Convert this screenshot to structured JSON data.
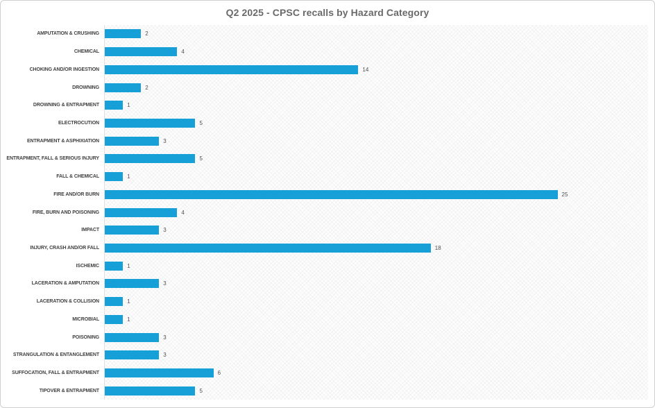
{
  "title": "Q2 2025 - CPSC recalls by Hazard Category",
  "colors": {
    "bar": "#17A0D8",
    "title_text": "#6A6A6A",
    "label_text": "#3F3F3F",
    "value_text": "#505050",
    "plot_border": "#E0E0E0",
    "frame_border": "#CFCFCF"
  },
  "chart_data": {
    "type": "bar",
    "orientation": "horizontal",
    "title": "Q2 2025 - CPSC recalls by Hazard Category",
    "categories": [
      "AMPUTATION & CRUSHING",
      "CHEMICAL",
      "CHOKING AND/OR INGESTION",
      "DROWNING",
      "DROWNING & ENTRAPMENT",
      "ELECTROCUTION",
      "ENTRAPMENT & ASPHIXIATION",
      "ENTRAPMENT, FALL & SERIOUS INJURY",
      "FALL & CHEMICAL",
      "FIRE AND/OR BURN",
      "FIRE, BURN AND POISONING",
      "IMPACT",
      "INJURY, CRASH AND/OR FALL",
      "ISCHEMIC",
      "LACERATION & AMPUTATION",
      "LACERATION & COLLISION",
      "MICROBIAL",
      "POISONING",
      "STRANGULATION & ENTANGLEMENT",
      "SUFFOCATION, FALL & ENTRAPMENT",
      "TIPOVER & ENTRAPMENT"
    ],
    "values": [
      2,
      4,
      14,
      2,
      1,
      5,
      3,
      5,
      1,
      25,
      4,
      3,
      18,
      1,
      3,
      1,
      1,
      3,
      3,
      6,
      5
    ],
    "xlim": [
      0,
      30
    ],
    "grid": false,
    "legend": false,
    "data_labels": true
  }
}
